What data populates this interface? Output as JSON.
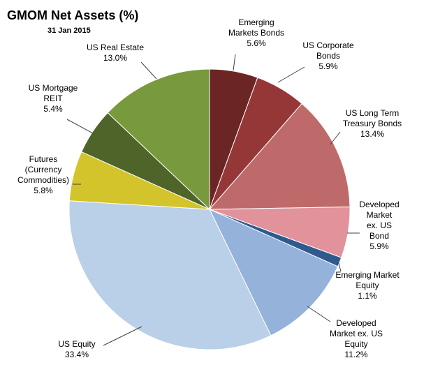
{
  "chart_data": {
    "type": "pie",
    "title": "GMOM Net Assets (%)",
    "subtitle": "31 Jan 2015",
    "start_angle_deg": 90,
    "direction": "clockwise",
    "slices": [
      {
        "label": "Emerging Markets Bonds",
        "label_lines": [
          "Emerging",
          "Markets Bonds"
        ],
        "value": 5.6,
        "value_label": "5.6%",
        "color": "#6B2525"
      },
      {
        "label": "US Corporate Bonds",
        "label_lines": [
          "US Corporate",
          "Bonds"
        ],
        "value": 5.9,
        "value_label": "5.9%",
        "color": "#963737"
      },
      {
        "label": "US Long Term Treasury Bonds",
        "label_lines": [
          "US Long Term",
          "Treasury Bonds"
        ],
        "value": 13.4,
        "value_label": "13.4%",
        "color": "#BF6A6A"
      },
      {
        "label": "Developed Market ex. US Bond",
        "label_lines": [
          "Developed",
          "Market",
          "ex. US",
          "Bond"
        ],
        "value": 5.9,
        "value_label": "5.9%",
        "color": "#E2929A"
      },
      {
        "label": "Emerging Market Equity",
        "label_lines": [
          "Emerging Market",
          "Equity"
        ],
        "value": 1.1,
        "value_label": "1.1%",
        "color": "#2F5A8E"
      },
      {
        "label": "Developed Market ex. US Equity",
        "label_lines": [
          "Developed",
          "Market ex. US",
          "Equity"
        ],
        "value": 11.2,
        "value_label": "11.2%",
        "color": "#95B2DB"
      },
      {
        "label": "US Equity",
        "label_lines": [
          "US Equity"
        ],
        "value": 33.4,
        "value_label": "33.4%",
        "color": "#BACFE8"
      },
      {
        "label": "Futures (Currency Commodities)",
        "label_lines": [
          "Futures",
          "(Currency",
          "Commodities)"
        ],
        "value": 5.8,
        "value_label": "5.8%",
        "color": "#D3C42C"
      },
      {
        "label": "US Mortgage REIT",
        "label_lines": [
          "US Mortgage",
          "REIT"
        ],
        "value": 5.4,
        "value_label": "5.4%",
        "color": "#4E6428"
      },
      {
        "label": "US Real Estate",
        "label_lines": [
          "US Real Estate"
        ],
        "value": 13.0,
        "value_label": "13.0%",
        "color": "#789A3C"
      }
    ],
    "legend": "none"
  }
}
